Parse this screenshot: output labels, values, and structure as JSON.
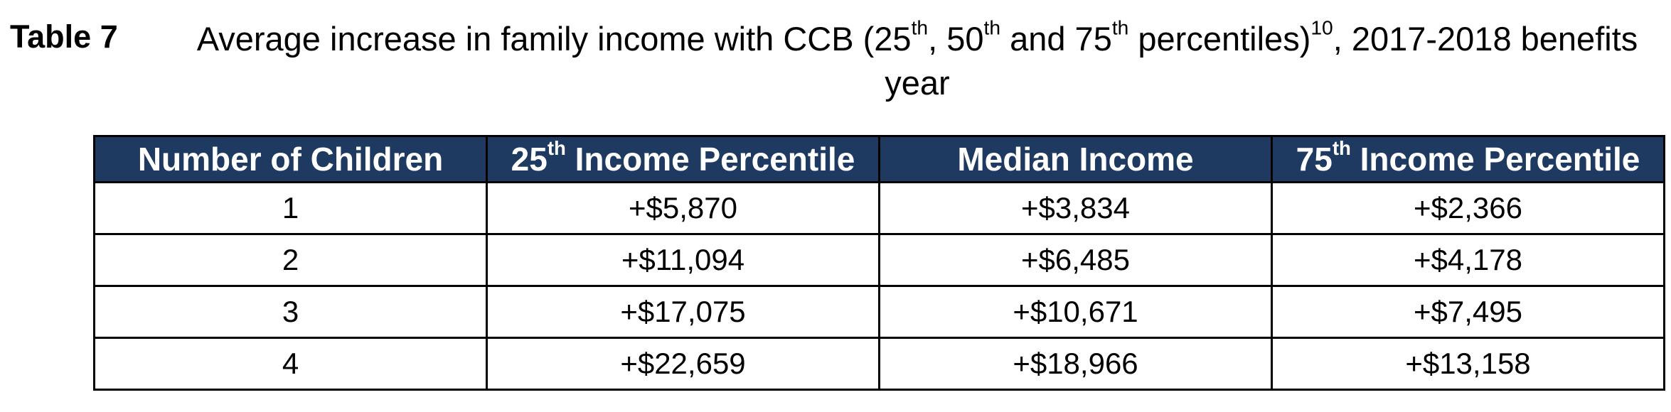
{
  "caption": {
    "label": "Table 7",
    "text_part1": "Average increase in family income with CCB (25",
    "sup1": "th",
    "text_part2": ", 50",
    "sup2": "th",
    "text_part3": " and 75",
    "sup3": "th",
    "text_part4": " percentiles)",
    "footnote": "10",
    "text_part5": ", 2017-2018 benefits year"
  },
  "table": {
    "headers": [
      {
        "text": "Number of Children",
        "sup": "",
        "rest": ""
      },
      {
        "text": "25",
        "sup": "th",
        "rest": " Income Percentile"
      },
      {
        "text": "Median Income",
        "sup": "",
        "rest": ""
      },
      {
        "text": "75",
        "sup": "th",
        "rest": " Income Percentile"
      }
    ],
    "rows": [
      [
        "1",
        "+$5,870",
        "+$3,834",
        "+$2,366"
      ],
      [
        "2",
        "+$11,094",
        "+$6,485",
        "+$4,178"
      ],
      [
        "3",
        "+$17,075",
        "+$10,671",
        "+$7,495"
      ],
      [
        "4",
        "+$22,659",
        "+$18,966",
        "+$13,158"
      ]
    ]
  },
  "colors": {
    "header_background": "#1f3a60",
    "header_text": "#ffffff"
  }
}
